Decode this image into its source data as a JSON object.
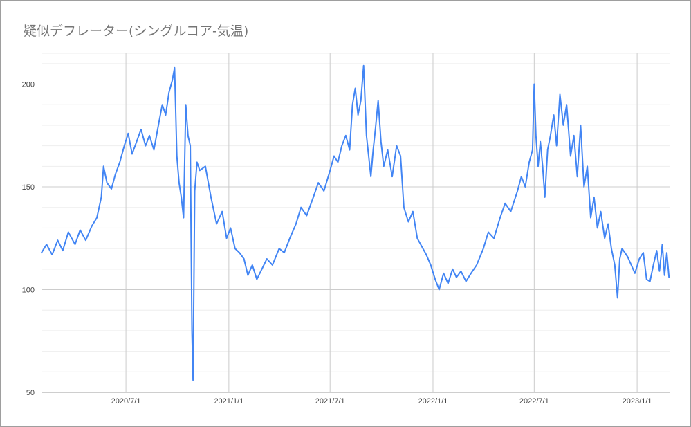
{
  "chart_data": {
    "type": "line",
    "title": "疑似デフレーター(シングルコア-気温)",
    "xlabel": "",
    "ylabel": "",
    "xlim": [
      "2020-02-01",
      "2023-02-28"
    ],
    "ylim": [
      50,
      215
    ],
    "y_ticks": [
      50,
      100,
      150,
      200
    ],
    "y_tick_labels": [
      "50",
      "100",
      "150",
      "200"
    ],
    "x_ticks": [
      "2020-07-01",
      "2021-01-01",
      "2021-07-01",
      "2022-01-01",
      "2022-07-01",
      "2023-01-01"
    ],
    "x_tick_labels": [
      "2020/7/1",
      "2021/1/1",
      "2021/7/1",
      "2022/1/1",
      "2022/7/1",
      "2023/1/1"
    ],
    "grid": true,
    "legend": "none",
    "line_color": "#4285f4",
    "series": [
      {
        "name": "",
        "points": [
          [
            "2020-02-01",
            118
          ],
          [
            "2020-02-10",
            122
          ],
          [
            "2020-02-20",
            117
          ],
          [
            "2020-03-01",
            124
          ],
          [
            "2020-03-10",
            119
          ],
          [
            "2020-03-20",
            128
          ],
          [
            "2020-04-01",
            122
          ],
          [
            "2020-04-10",
            129
          ],
          [
            "2020-04-20",
            124
          ],
          [
            "2020-05-01",
            131
          ],
          [
            "2020-05-10",
            135
          ],
          [
            "2020-05-18",
            145
          ],
          [
            "2020-05-22",
            160
          ],
          [
            "2020-05-28",
            152
          ],
          [
            "2020-06-05",
            149
          ],
          [
            "2020-06-12",
            156
          ],
          [
            "2020-06-20",
            162
          ],
          [
            "2020-06-28",
            170
          ],
          [
            "2020-07-05",
            176
          ],
          [
            "2020-07-12",
            166
          ],
          [
            "2020-07-20",
            172
          ],
          [
            "2020-07-28",
            178
          ],
          [
            "2020-08-05",
            170
          ],
          [
            "2020-08-12",
            175
          ],
          [
            "2020-08-20",
            168
          ],
          [
            "2020-08-28",
            180
          ],
          [
            "2020-09-04",
            190
          ],
          [
            "2020-09-10",
            185
          ],
          [
            "2020-09-16",
            196
          ],
          [
            "2020-09-22",
            202
          ],
          [
            "2020-09-26",
            208
          ],
          [
            "2020-09-30",
            165
          ],
          [
            "2020-10-04",
            152
          ],
          [
            "2020-10-08",
            145
          ],
          [
            "2020-10-12",
            135
          ],
          [
            "2020-10-16",
            190
          ],
          [
            "2020-10-20",
            175
          ],
          [
            "2020-10-24",
            170
          ],
          [
            "2020-10-27",
            80
          ],
          [
            "2020-10-29",
            56
          ],
          [
            "2020-11-01",
            148
          ],
          [
            "2020-11-05",
            162
          ],
          [
            "2020-11-10",
            158
          ],
          [
            "2020-11-20",
            160
          ],
          [
            "2020-11-30",
            145
          ],
          [
            "2020-12-10",
            132
          ],
          [
            "2020-12-20",
            138
          ],
          [
            "2020-12-28",
            125
          ],
          [
            "2021-01-04",
            130
          ],
          [
            "2021-01-12",
            120
          ],
          [
            "2021-01-20",
            118
          ],
          [
            "2021-01-28",
            115
          ],
          [
            "2021-02-04",
            107
          ],
          [
            "2021-02-12",
            112
          ],
          [
            "2021-02-20",
            105
          ],
          [
            "2021-03-01",
            110
          ],
          [
            "2021-03-10",
            115
          ],
          [
            "2021-03-20",
            112
          ],
          [
            "2021-04-01",
            120
          ],
          [
            "2021-04-10",
            118
          ],
          [
            "2021-04-20",
            125
          ],
          [
            "2021-05-01",
            132
          ],
          [
            "2021-05-10",
            140
          ],
          [
            "2021-05-20",
            136
          ],
          [
            "2021-06-01",
            145
          ],
          [
            "2021-06-10",
            152
          ],
          [
            "2021-06-20",
            148
          ],
          [
            "2021-07-01",
            158
          ],
          [
            "2021-07-08",
            165
          ],
          [
            "2021-07-15",
            162
          ],
          [
            "2021-07-22",
            170
          ],
          [
            "2021-07-29",
            175
          ],
          [
            "2021-08-05",
            168
          ],
          [
            "2021-08-10",
            190
          ],
          [
            "2021-08-15",
            198
          ],
          [
            "2021-08-20",
            185
          ],
          [
            "2021-08-25",
            192
          ],
          [
            "2021-08-30",
            209
          ],
          [
            "2021-09-04",
            175
          ],
          [
            "2021-09-08",
            165
          ],
          [
            "2021-09-12",
            155
          ],
          [
            "2021-09-16",
            168
          ],
          [
            "2021-09-20",
            178
          ],
          [
            "2021-09-25",
            192
          ],
          [
            "2021-09-30",
            172
          ],
          [
            "2021-10-05",
            160
          ],
          [
            "2021-10-12",
            168
          ],
          [
            "2021-10-20",
            155
          ],
          [
            "2021-10-28",
            170
          ],
          [
            "2021-11-04",
            165
          ],
          [
            "2021-11-10",
            140
          ],
          [
            "2021-11-18",
            133
          ],
          [
            "2021-11-26",
            138
          ],
          [
            "2021-12-04",
            125
          ],
          [
            "2021-12-12",
            121
          ],
          [
            "2021-12-20",
            117
          ],
          [
            "2021-12-28",
            112
          ],
          [
            "2022-01-05",
            105
          ],
          [
            "2022-01-12",
            100
          ],
          [
            "2022-01-20",
            108
          ],
          [
            "2022-01-28",
            103
          ],
          [
            "2022-02-05",
            110
          ],
          [
            "2022-02-12",
            106
          ],
          [
            "2022-02-20",
            109
          ],
          [
            "2022-03-01",
            104
          ],
          [
            "2022-03-10",
            108
          ],
          [
            "2022-03-20",
            112
          ],
          [
            "2022-04-01",
            120
          ],
          [
            "2022-04-10",
            128
          ],
          [
            "2022-04-20",
            125
          ],
          [
            "2022-05-01",
            135
          ],
          [
            "2022-05-10",
            142
          ],
          [
            "2022-05-20",
            138
          ],
          [
            "2022-06-01",
            148
          ],
          [
            "2022-06-08",
            155
          ],
          [
            "2022-06-15",
            150
          ],
          [
            "2022-06-22",
            162
          ],
          [
            "2022-06-28",
            168
          ],
          [
            "2022-07-01",
            200
          ],
          [
            "2022-07-04",
            175
          ],
          [
            "2022-07-08",
            160
          ],
          [
            "2022-07-12",
            172
          ],
          [
            "2022-07-16",
            160
          ],
          [
            "2022-07-20",
            145
          ],
          [
            "2022-07-25",
            168
          ],
          [
            "2022-07-30",
            175
          ],
          [
            "2022-08-05",
            185
          ],
          [
            "2022-08-10",
            170
          ],
          [
            "2022-08-16",
            195
          ],
          [
            "2022-08-22",
            180
          ],
          [
            "2022-08-28",
            190
          ],
          [
            "2022-09-04",
            165
          ],
          [
            "2022-09-10",
            175
          ],
          [
            "2022-09-16",
            155
          ],
          [
            "2022-09-22",
            180
          ],
          [
            "2022-09-28",
            150
          ],
          [
            "2022-10-04",
            160
          ],
          [
            "2022-10-10",
            135
          ],
          [
            "2022-10-16",
            145
          ],
          [
            "2022-10-22",
            130
          ],
          [
            "2022-10-28",
            138
          ],
          [
            "2022-11-04",
            125
          ],
          [
            "2022-11-10",
            132
          ],
          [
            "2022-11-16",
            120
          ],
          [
            "2022-11-22",
            112
          ],
          [
            "2022-11-27",
            96
          ],
          [
            "2022-12-01",
            115
          ],
          [
            "2022-12-05",
            120
          ],
          [
            "2022-12-15",
            116
          ],
          [
            "2022-12-28",
            108
          ],
          [
            "2023-01-05",
            115
          ],
          [
            "2023-01-12",
            118
          ],
          [
            "2023-01-18",
            105
          ],
          [
            "2023-01-24",
            104
          ],
          [
            "2023-01-30",
            112
          ],
          [
            "2023-02-05",
            119
          ],
          [
            "2023-02-10",
            109
          ],
          [
            "2023-02-15",
            122
          ],
          [
            "2023-02-19",
            107
          ],
          [
            "2023-02-23",
            118
          ],
          [
            "2023-02-27",
            106
          ]
        ]
      }
    ]
  }
}
